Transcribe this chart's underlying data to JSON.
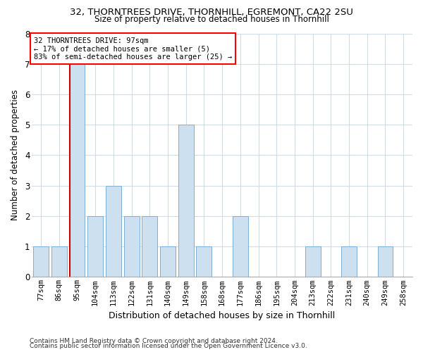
{
  "title1": "32, THORNTREES DRIVE, THORNHILL, EGREMONT, CA22 2SU",
  "title2": "Size of property relative to detached houses in Thornhill",
  "xlabel": "Distribution of detached houses by size in Thornhill",
  "ylabel": "Number of detached properties",
  "categories": [
    "77sqm",
    "86sqm",
    "95sqm",
    "104sqm",
    "113sqm",
    "122sqm",
    "131sqm",
    "140sqm",
    "149sqm",
    "158sqm",
    "168sqm",
    "177sqm",
    "186sqm",
    "195sqm",
    "204sqm",
    "213sqm",
    "222sqm",
    "231sqm",
    "240sqm",
    "249sqm",
    "258sqm"
  ],
  "values": [
    1,
    1,
    7,
    2,
    3,
    2,
    2,
    1,
    5,
    1,
    0,
    2,
    0,
    0,
    0,
    1,
    0,
    1,
    0,
    1,
    0
  ],
  "bar_color": "#cce0f0",
  "bar_edgecolor": "#7bafd4",
  "highlight_index": 2,
  "highlight_color": "#cc0000",
  "ylim": [
    0,
    8
  ],
  "yticks": [
    0,
    1,
    2,
    3,
    4,
    5,
    6,
    7,
    8
  ],
  "annotation_line1": "32 THORNTREES DRIVE: 97sqm",
  "annotation_line2": "← 17% of detached houses are smaller (5)",
  "annotation_line3": "83% of semi-detached houses are larger (25) →",
  "footnote1": "Contains HM Land Registry data © Crown copyright and database right 2024.",
  "footnote2": "Contains public sector information licensed under the Open Government Licence v3.0.",
  "background_color": "#ffffff",
  "grid_color": "#d0dce8"
}
